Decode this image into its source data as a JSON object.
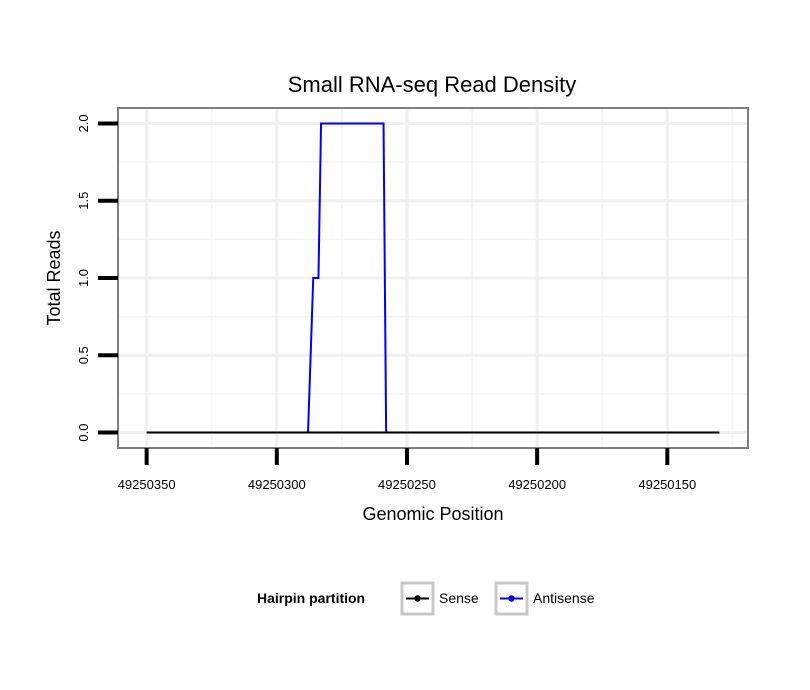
{
  "chart_data": {
    "type": "line",
    "title": "Small RNA-seq Read Density",
    "xlabel": "Genomic Position",
    "ylabel": "Total Reads",
    "x_reversed": true,
    "xlim": [
      49250361,
      49250119
    ],
    "ylim": [
      -0.1,
      2.1
    ],
    "x_ticks": [
      49250350,
      49250300,
      49250250,
      49250200,
      49250150
    ],
    "x_tick_labels": [
      "49250350",
      "49250300",
      "49250250",
      "49250200",
      "49250150"
    ],
    "y_ticks": [
      0.0,
      0.5,
      1.0,
      1.5,
      2.0
    ],
    "y_tick_labels": [
      "0.0",
      "0.5",
      "1.0",
      "1.5",
      "2.0"
    ],
    "grid": true,
    "legend": {
      "title": "Hairpin partition",
      "position": "bottom"
    },
    "series": [
      {
        "name": "Antisense",
        "color": "#0000ff",
        "x": [
          49250350,
          49250288,
          49250286,
          49250285,
          49250284,
          49250283,
          49250259,
          49250258,
          49250130
        ],
        "y": [
          0,
          0,
          1,
          1,
          1,
          2,
          2,
          0,
          0
        ]
      },
      {
        "name": "Sense",
        "color": "#000000",
        "x": [
          49250350,
          49250130
        ],
        "y": [
          0,
          0
        ]
      }
    ]
  }
}
